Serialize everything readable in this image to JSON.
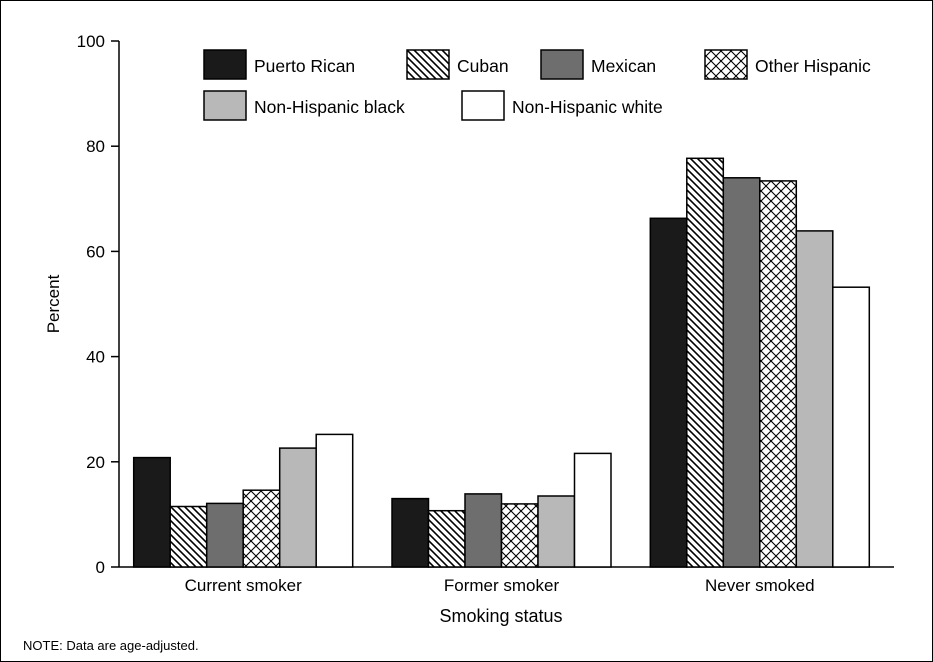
{
  "chart_data": {
    "type": "bar",
    "xlabel": "Smoking status",
    "ylabel": "Percent",
    "ylim": [
      0,
      100
    ],
    "yticks": [
      0,
      20,
      40,
      60,
      80,
      100
    ],
    "categories": [
      "Current smoker",
      "Former smoker",
      "Never smoked"
    ],
    "series": [
      {
        "name": "Puerto Rican",
        "fill": "solid-black",
        "values": [
          20.8,
          13.0,
          66.3
        ]
      },
      {
        "name": "Cuban",
        "fill": "diagonal-hatch",
        "values": [
          11.5,
          10.7,
          77.7
        ]
      },
      {
        "name": "Mexican",
        "fill": "dark-gray",
        "values": [
          12.1,
          13.9,
          74.0
        ]
      },
      {
        "name": "Other Hispanic",
        "fill": "crosshatch",
        "values": [
          14.6,
          12.0,
          73.4
        ]
      },
      {
        "name": "Non-Hispanic black",
        "fill": "light-gray",
        "values": [
          22.6,
          13.5,
          63.9
        ]
      },
      {
        "name": "Non-Hispanic white",
        "fill": "white",
        "values": [
          25.2,
          21.6,
          53.2
        ]
      }
    ],
    "legend_position": "top",
    "grid": false
  },
  "colors": {
    "solid-black": "#1a1a1a",
    "dark-gray": "#6e6e6e",
    "light-gray": "#b8b8b8",
    "white": "#ffffff",
    "line": "#000000"
  },
  "note": "NOTE: Data are age-adjusted."
}
